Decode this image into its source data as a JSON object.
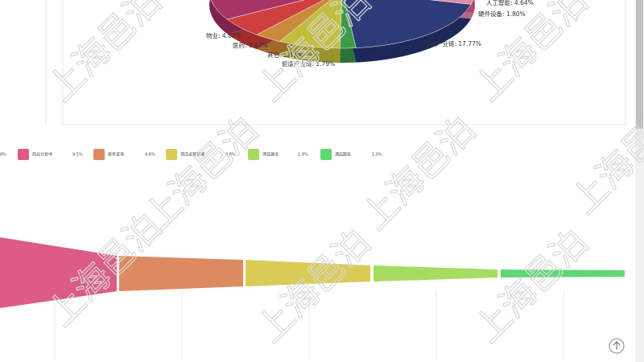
{
  "pie_labels": [
    "人工智能: 4.64%",
    "硬件设备: 1.80%",
    "物业: 4.82%",
    "医药: 3.67%",
    "其它: 5.42%",
    "健康产业链: 1.79%",
    "文化产业链: 17.77%"
  ],
  "legend": {
    "cut_item": "8%",
    "items": [
      {
        "name": "商业计划书",
        "percent": "9.5%"
      },
      {
        "name": "投资咨询",
        "percent": "4.8%"
      },
      {
        "name": "项目运营管理",
        "percent": "3.8%"
      },
      {
        "name": "项目建设",
        "percent": "1.9%"
      },
      {
        "name": "酒店服务",
        "percent": "1.0%"
      }
    ]
  },
  "watermark": "上海邑泊"
}
